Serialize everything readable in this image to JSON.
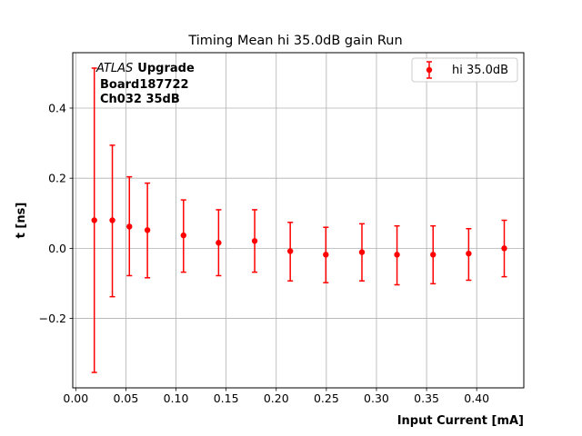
{
  "chart_data": {
    "type": "scatter",
    "title": "Timing Mean hi 35.0dB gain Run",
    "xlabel": "Input Current [mA]",
    "ylabel": "t [ns]",
    "xlim": [
      -0.003,
      0.447
    ],
    "ylim": [
      -0.398,
      0.558
    ],
    "xticks": [
      "0.00",
      "0.05",
      "0.10",
      "0.15",
      "0.20",
      "0.25",
      "0.30",
      "0.35",
      "0.40"
    ],
    "xtick_values": [
      0,
      0.05,
      0.1,
      0.15,
      0.2,
      0.25,
      0.3,
      0.35,
      0.4
    ],
    "yticks": [
      "−0.2",
      "0.0",
      "0.2",
      "0.4"
    ],
    "ytick_values": [
      -0.2,
      0,
      0.2,
      0.4
    ],
    "grid": true,
    "legend_position": "top-right",
    "annotation": {
      "experiment": "ATLAS",
      "experiment_suffix": "Upgrade",
      "line2": "Board187722",
      "line3": "Ch032 35dB"
    },
    "series": [
      {
        "name": "hi 35.0dB",
        "color": "#ff0000",
        "points": [
          {
            "x": 0.0185,
            "y": 0.08,
            "yerr_low": -0.354,
            "yerr_high": 0.514
          },
          {
            "x": 0.0365,
            "y": 0.08,
            "yerr_low": -0.138,
            "yerr_high": 0.294
          },
          {
            "x": 0.0535,
            "y": 0.062,
            "yerr_low": -0.078,
            "yerr_high": 0.204
          },
          {
            "x": 0.0715,
            "y": 0.052,
            "yerr_low": -0.084,
            "yerr_high": 0.186
          },
          {
            "x": 0.1075,
            "y": 0.037,
            "yerr_low": -0.068,
            "yerr_high": 0.138
          },
          {
            "x": 0.1425,
            "y": 0.016,
            "yerr_low": -0.078,
            "yerr_high": 0.11
          },
          {
            "x": 0.1785,
            "y": 0.021,
            "yerr_low": -0.068,
            "yerr_high": 0.11
          },
          {
            "x": 0.214,
            "y": -0.008,
            "yerr_low": -0.093,
            "yerr_high": 0.074
          },
          {
            "x": 0.2495,
            "y": -0.018,
            "yerr_low": -0.098,
            "yerr_high": 0.06
          },
          {
            "x": 0.2855,
            "y": -0.011,
            "yerr_low": -0.093,
            "yerr_high": 0.07
          },
          {
            "x": 0.3205,
            "y": -0.018,
            "yerr_low": -0.104,
            "yerr_high": 0.064
          },
          {
            "x": 0.3565,
            "y": -0.018,
            "yerr_low": -0.101,
            "yerr_high": 0.064
          },
          {
            "x": 0.392,
            "y": -0.015,
            "yerr_low": -0.091,
            "yerr_high": 0.056
          },
          {
            "x": 0.4275,
            "y": 0.0,
            "yerr_low": -0.081,
            "yerr_high": 0.08
          }
        ]
      }
    ]
  }
}
